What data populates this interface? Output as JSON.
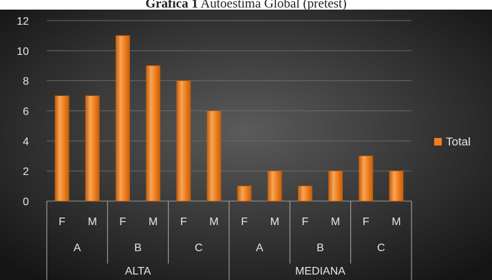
{
  "title": {
    "bold": "Gráfica 1",
    "rest": " Autoestima Global (pretest)"
  },
  "colors": {
    "bar": "#f07f1f",
    "bar_dark": "#c45f0c",
    "bar_light": "#f8a658",
    "background_center": "#5b5b5b",
    "background_edge": "#141414",
    "gridline": "#6a6a6a",
    "text": "#e6e6e6"
  },
  "chart_data": {
    "type": "bar",
    "title": "Gráfica 1 Autoestima Global (pretest)",
    "ylim": [
      0,
      12
    ],
    "yticks": [
      0,
      2,
      4,
      6,
      8,
      10,
      12
    ],
    "grid": true,
    "legend": {
      "position": "right",
      "label": "Total"
    },
    "series": [
      {
        "name": "Total",
        "values": [
          7,
          7,
          11,
          9,
          8,
          6,
          1,
          2,
          1,
          2,
          3,
          2
        ]
      }
    ],
    "categories": [
      "F",
      "M",
      "F",
      "M",
      "F",
      "M",
      "F",
      "M",
      "F",
      "M",
      "F",
      "M"
    ],
    "groups_level2": [
      "A",
      "B",
      "C",
      "A",
      "B",
      "C"
    ],
    "groups_level1": [
      "ALTA",
      "MEDIANA"
    ]
  }
}
